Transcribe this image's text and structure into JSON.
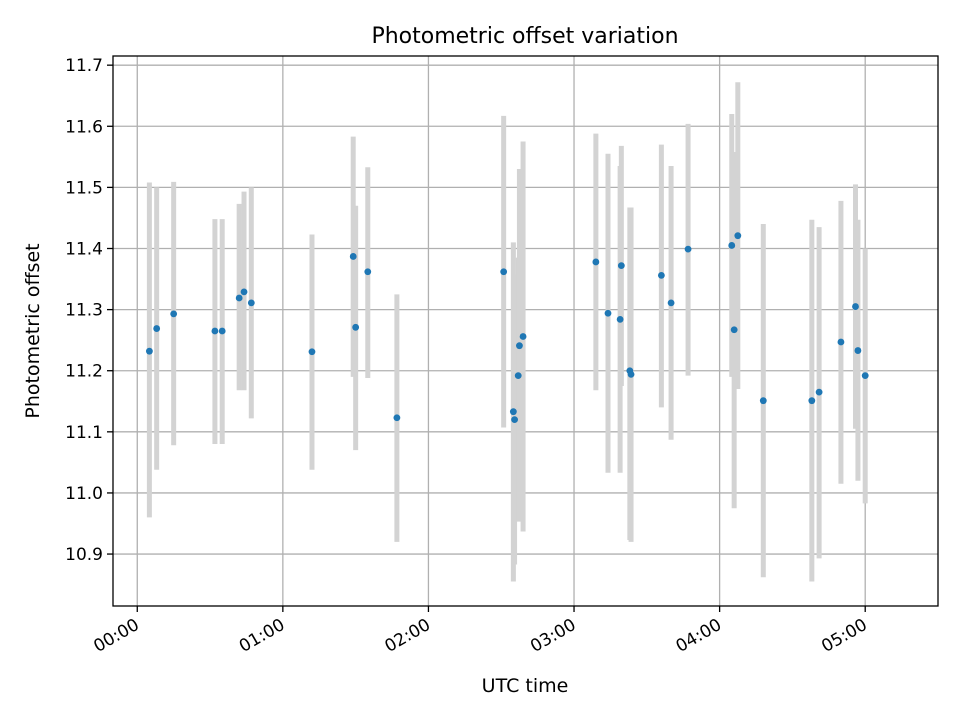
{
  "chart_data": {
    "type": "scatter",
    "title": "Photometric offset variation",
    "xlabel": "UTC time",
    "ylabel": "Photometric offset",
    "x_unit": "minutes",
    "xlim": [
      -10,
      330
    ],
    "ylim": [
      10.815,
      11.715
    ],
    "xticks": [
      {
        "value": 0,
        "label": "00:00"
      },
      {
        "value": 60,
        "label": "01:00"
      },
      {
        "value": 120,
        "label": "02:00"
      },
      {
        "value": 180,
        "label": "03:00"
      },
      {
        "value": 240,
        "label": "04:00"
      },
      {
        "value": 300,
        "label": "05:00"
      }
    ],
    "yticks": [
      {
        "value": 10.9,
        "label": "10.9"
      },
      {
        "value": 11.0,
        "label": "11.0"
      },
      {
        "value": 11.1,
        "label": "11.1"
      },
      {
        "value": 11.2,
        "label": "11.2"
      },
      {
        "value": 11.3,
        "label": "11.3"
      },
      {
        "value": 11.4,
        "label": "11.4"
      },
      {
        "value": 11.5,
        "label": "11.5"
      },
      {
        "value": 11.6,
        "label": "11.6"
      },
      {
        "value": 11.7,
        "label": "11.7"
      }
    ],
    "grid": true,
    "legend": "none",
    "colors": {
      "point": "#1f77b4",
      "errorbar": "#d3d3d3",
      "grid": "#b0b0b0"
    },
    "points": [
      {
        "x": 5,
        "y": 11.232,
        "ylo": 10.96,
        "yhi": 11.508
      },
      {
        "x": 8,
        "y": 11.269,
        "ylo": 11.038,
        "yhi": 11.5
      },
      {
        "x": 15,
        "y": 11.293,
        "ylo": 11.078,
        "yhi": 11.509
      },
      {
        "x": 32,
        "y": 11.265,
        "ylo": 11.08,
        "yhi": 11.448
      },
      {
        "x": 35,
        "y": 11.265,
        "ylo": 11.08,
        "yhi": 11.448
      },
      {
        "x": 42,
        "y": 11.319,
        "ylo": 11.168,
        "yhi": 11.473
      },
      {
        "x": 44,
        "y": 11.329,
        "ylo": 11.168,
        "yhi": 11.493
      },
      {
        "x": 47,
        "y": 11.311,
        "ylo": 11.122,
        "yhi": 11.5
      },
      {
        "x": 72,
        "y": 11.231,
        "ylo": 11.038,
        "yhi": 11.423
      },
      {
        "x": 89,
        "y": 11.387,
        "ylo": 11.19,
        "yhi": 11.583
      },
      {
        "x": 90,
        "y": 11.271,
        "ylo": 11.07,
        "yhi": 11.47
      },
      {
        "x": 95,
        "y": 11.362,
        "ylo": 11.188,
        "yhi": 11.533
      },
      {
        "x": 107,
        "y": 11.123,
        "ylo": 10.92,
        "yhi": 11.325
      },
      {
        "x": 151,
        "y": 11.362,
        "ylo": 11.107,
        "yhi": 11.617
      },
      {
        "x": 155,
        "y": 11.133,
        "ylo": 10.855,
        "yhi": 11.41
      },
      {
        "x": 155.5,
        "y": 11.12,
        "ylo": 10.883,
        "yhi": 11.357
      },
      {
        "x": 157,
        "y": 11.192,
        "ylo": 10.96,
        "yhi": 11.385
      },
      {
        "x": 157.5,
        "y": 11.241,
        "ylo": 10.953,
        "yhi": 11.53
      },
      {
        "x": 159,
        "y": 11.256,
        "ylo": 10.937,
        "yhi": 11.575
      },
      {
        "x": 189,
        "y": 11.378,
        "ylo": 11.168,
        "yhi": 11.588
      },
      {
        "x": 194,
        "y": 11.294,
        "ylo": 11.033,
        "yhi": 11.555
      },
      {
        "x": 199,
        "y": 11.284,
        "ylo": 11.033,
        "yhi": 11.535
      },
      {
        "x": 199.5,
        "y": 11.372,
        "ylo": 11.175,
        "yhi": 11.568
      },
      {
        "x": 203,
        "y": 11.2,
        "ylo": 10.923,
        "yhi": 11.467
      },
      {
        "x": 203.5,
        "y": 11.194,
        "ylo": 10.92,
        "yhi": 11.467
      },
      {
        "x": 216,
        "y": 11.356,
        "ylo": 11.14,
        "yhi": 11.57
      },
      {
        "x": 220,
        "y": 11.311,
        "ylo": 11.087,
        "yhi": 11.535
      },
      {
        "x": 227,
        "y": 11.399,
        "ylo": 11.192,
        "yhi": 11.604
      },
      {
        "x": 245,
        "y": 11.405,
        "ylo": 11.19,
        "yhi": 11.62
      },
      {
        "x": 246,
        "y": 11.267,
        "ylo": 10.975,
        "yhi": 11.558
      },
      {
        "x": 247.5,
        "y": 11.421,
        "ylo": 11.17,
        "yhi": 11.672
      },
      {
        "x": 258,
        "y": 11.151,
        "ylo": 10.862,
        "yhi": 11.44
      },
      {
        "x": 278,
        "y": 11.151,
        "ylo": 10.855,
        "yhi": 11.447
      },
      {
        "x": 281,
        "y": 11.165,
        "ylo": 10.893,
        "yhi": 11.435
      },
      {
        "x": 290,
        "y": 11.247,
        "ylo": 11.015,
        "yhi": 11.478
      },
      {
        "x": 296,
        "y": 11.305,
        "ylo": 11.105,
        "yhi": 11.505
      },
      {
        "x": 297,
        "y": 11.233,
        "ylo": 11.02,
        "yhi": 11.447
      },
      {
        "x": 300,
        "y": 11.192,
        "ylo": 10.983,
        "yhi": 11.4
      }
    ]
  }
}
